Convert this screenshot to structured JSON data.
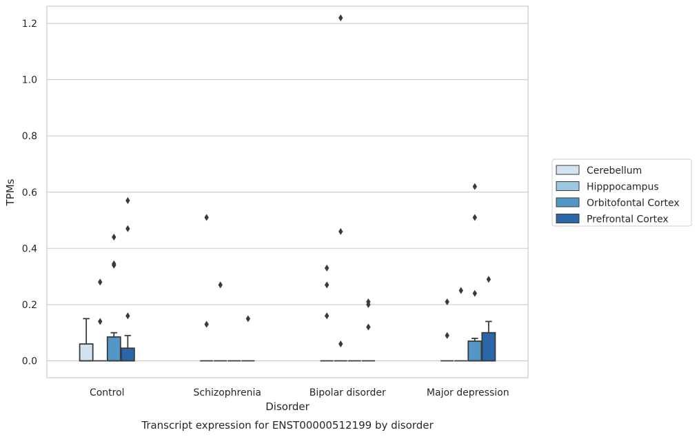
{
  "caption": "Transcript expression for ENST00000512199 by disorder",
  "chart_data": {
    "type": "box",
    "xlabel": "Disorder",
    "ylabel": "TPMs",
    "ylim": [
      -0.06,
      1.28
    ],
    "yticks": [
      0.0,
      0.2,
      0.4,
      0.6,
      0.8,
      1.0,
      1.2
    ],
    "ytick_labels": [
      "0.0",
      "0.2",
      "0.4",
      "0.6",
      "0.8",
      "1.0",
      "1.2"
    ],
    "grid": true,
    "legend_position": "right",
    "categories": [
      "Control",
      "Schizophrenia",
      "Bipolar disorder",
      "Major depression"
    ],
    "series": [
      {
        "name": "Cerebellum",
        "color": "#d2e2f0",
        "boxes": [
          {
            "q1": 0.0,
            "median": 0.0,
            "q3": 0.06,
            "whisker_low": 0.0,
            "whisker_high": 0.15,
            "outliers": []
          },
          {
            "q1": 0.0,
            "median": 0.0,
            "q3": 0.0,
            "whisker_low": 0.0,
            "whisker_high": 0.0,
            "outliers": [
              0.51,
              0.13
            ]
          },
          {
            "q1": 0.0,
            "median": 0.0,
            "q3": 0.0,
            "whisker_low": 0.0,
            "whisker_high": 0.0,
            "outliers": [
              0.33,
              0.27,
              0.16
            ]
          },
          {
            "q1": 0.0,
            "median": 0.0,
            "q3": 0.0,
            "whisker_low": 0.0,
            "whisker_high": 0.0,
            "outliers": [
              0.21,
              0.09
            ]
          }
        ]
      },
      {
        "name": "Hipppocampus",
        "color": "#9ac8e0",
        "boxes": [
          {
            "q1": 0.0,
            "median": 0.0,
            "q3": 0.0,
            "whisker_low": 0.0,
            "whisker_high": 0.0,
            "outliers": [
              0.28,
              0.14
            ]
          },
          {
            "q1": 0.0,
            "median": 0.0,
            "q3": 0.0,
            "whisker_low": 0.0,
            "whisker_high": 0.0,
            "outliers": [
              0.27
            ]
          },
          {
            "q1": 0.0,
            "median": 0.0,
            "q3": 0.0,
            "whisker_low": 0.0,
            "whisker_high": 0.0,
            "outliers": [
              1.22,
              0.46,
              0.06
            ]
          },
          {
            "q1": 0.0,
            "median": 0.0,
            "q3": 0.0,
            "whisker_low": 0.0,
            "whisker_high": 0.0,
            "outliers": [
              0.25
            ]
          }
        ]
      },
      {
        "name": "Orbitofontal Cortex",
        "color": "#5497c6",
        "boxes": [
          {
            "q1": 0.0,
            "median": 0.0,
            "q3": 0.085,
            "whisker_low": 0.0,
            "whisker_high": 0.1,
            "outliers": [
              0.44,
              0.34,
              0.345
            ]
          },
          {
            "q1": 0.0,
            "median": 0.0,
            "q3": 0.0,
            "whisker_low": 0.0,
            "whisker_high": 0.0,
            "outliers": []
          },
          {
            "q1": 0.0,
            "median": 0.0,
            "q3": 0.0,
            "whisker_low": 0.0,
            "whisker_high": 0.0,
            "outliers": []
          },
          {
            "q1": 0.0,
            "median": 0.0,
            "q3": 0.07,
            "whisker_low": 0.0,
            "whisker_high": 0.08,
            "outliers": [
              0.62,
              0.51,
              0.24
            ]
          }
        ]
      },
      {
        "name": "Prefrontal Cortex",
        "color": "#2967a8",
        "boxes": [
          {
            "q1": 0.0,
            "median": 0.0,
            "q3": 0.045,
            "whisker_low": 0.0,
            "whisker_high": 0.09,
            "outliers": [
              0.57,
              0.47,
              0.16
            ]
          },
          {
            "q1": 0.0,
            "median": 0.0,
            "q3": 0.0,
            "whisker_low": 0.0,
            "whisker_high": 0.0,
            "outliers": [
              0.15
            ]
          },
          {
            "q1": 0.0,
            "median": 0.0,
            "q3": 0.0,
            "whisker_low": 0.0,
            "whisker_high": 0.0,
            "outliers": [
              0.21,
              0.2,
              0.12
            ]
          },
          {
            "q1": 0.0,
            "median": 0.0,
            "q3": 0.1,
            "whisker_low": 0.0,
            "whisker_high": 0.14,
            "outliers": [
              0.29
            ]
          }
        ]
      }
    ]
  }
}
